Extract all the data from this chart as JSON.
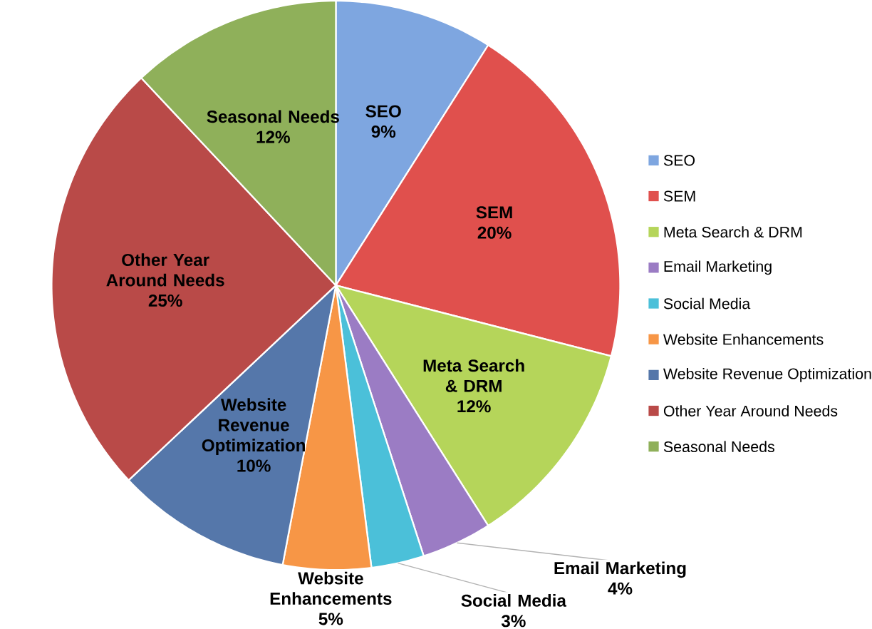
{
  "chart_data": {
    "type": "pie",
    "categories": [
      "SEO",
      "SEM",
      "Meta Search & DRM",
      "Email Marketing",
      "Social Media",
      "Website Enhancements",
      "Website Revenue Optimization",
      "Other Year Around Needs",
      "Seasonal Needs"
    ],
    "values": [
      9,
      20,
      12,
      4,
      3,
      5,
      10,
      25,
      12
    ],
    "value_labels": [
      "9%",
      "20%",
      "12%",
      "4%",
      "3%",
      "5%",
      "10%",
      "25%",
      "12%"
    ],
    "colors": [
      "#7ea6e0",
      "#e0504d",
      "#b5d55a",
      "#9b7cc4",
      "#4bc0d9",
      "#f79646",
      "#5577aa",
      "#b94a48",
      "#8fb05a"
    ],
    "legend": "right"
  }
}
